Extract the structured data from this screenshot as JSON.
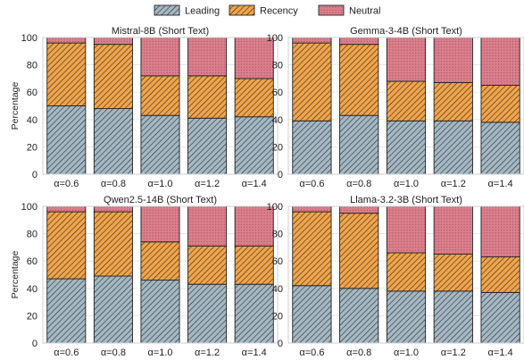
{
  "legend": {
    "items": [
      {
        "name": "Leading",
        "color": "#a4b8c4",
        "pattern": "diagonal-dense"
      },
      {
        "name": "Recency",
        "color": "#f0a44a",
        "pattern": "diagonal-dense"
      },
      {
        "name": "Neutral",
        "color": "#d9808d",
        "pattern": "dots"
      }
    ],
    "placement": "top-center"
  },
  "chart_data": [
    {
      "type": "bar",
      "stacked": true,
      "title": "Mistral-8B (Short Text)",
      "categories": [
        "α=0.6",
        "α=0.8",
        "α=1.0",
        "α=1.2",
        "α=1.4"
      ],
      "ylabel": "Percentage",
      "ylim": [
        0,
        100
      ],
      "yticks": [
        0,
        20,
        40,
        60,
        80,
        100
      ],
      "grid": true,
      "series": [
        {
          "name": "Leading",
          "values": [
            50,
            48,
            43,
            41,
            42
          ]
        },
        {
          "name": "Recency",
          "values": [
            46,
            47,
            29,
            31,
            28
          ]
        },
        {
          "name": "Neutral",
          "values": [
            4,
            5,
            28,
            28,
            30
          ]
        }
      ]
    },
    {
      "type": "bar",
      "stacked": true,
      "title": "Gemma-3-4B (Short Text)",
      "categories": [
        "α=0.6",
        "α=0.8",
        "α=1.0",
        "α=1.2",
        "α=1.4"
      ],
      "ylabel": "",
      "ylim": [
        0,
        100
      ],
      "yticks": [
        0,
        20,
        40,
        60,
        80,
        100
      ],
      "grid": true,
      "series": [
        {
          "name": "Leading",
          "values": [
            39,
            43,
            39,
            39,
            38
          ]
        },
        {
          "name": "Recency",
          "values": [
            57,
            52,
            29,
            28,
            27
          ]
        },
        {
          "name": "Neutral",
          "values": [
            4,
            5,
            32,
            33,
            35
          ]
        }
      ]
    },
    {
      "type": "bar",
      "stacked": true,
      "title": "Qwen2.5-14B (Short Text)",
      "categories": [
        "α=0.6",
        "α=0.8",
        "α=1.0",
        "α=1.2",
        "α=1.4"
      ],
      "ylabel": "Percentage",
      "ylim": [
        0,
        100
      ],
      "yticks": [
        0,
        20,
        40,
        60,
        80,
        100
      ],
      "grid": true,
      "series": [
        {
          "name": "Leading",
          "values": [
            47,
            49,
            46,
            43,
            43
          ]
        },
        {
          "name": "Recency",
          "values": [
            49,
            47,
            28,
            28,
            28
          ]
        },
        {
          "name": "Neutral",
          "values": [
            4,
            4,
            26,
            29,
            29
          ]
        }
      ]
    },
    {
      "type": "bar",
      "stacked": true,
      "title": "Llama-3.2-3B (Short Text)",
      "categories": [
        "α=0.6",
        "α=0.8",
        "α=1.0",
        "α=1.2",
        "α=1.4"
      ],
      "ylabel": "",
      "ylim": [
        0,
        100
      ],
      "yticks": [
        0,
        20,
        40,
        60,
        80,
        100
      ],
      "grid": true,
      "series": [
        {
          "name": "Leading",
          "values": [
            42,
            40,
            38,
            38,
            37
          ]
        },
        {
          "name": "Recency",
          "values": [
            54,
            55,
            28,
            27,
            26
          ]
        },
        {
          "name": "Neutral",
          "values": [
            4,
            5,
            34,
            35,
            37
          ]
        }
      ]
    }
  ]
}
